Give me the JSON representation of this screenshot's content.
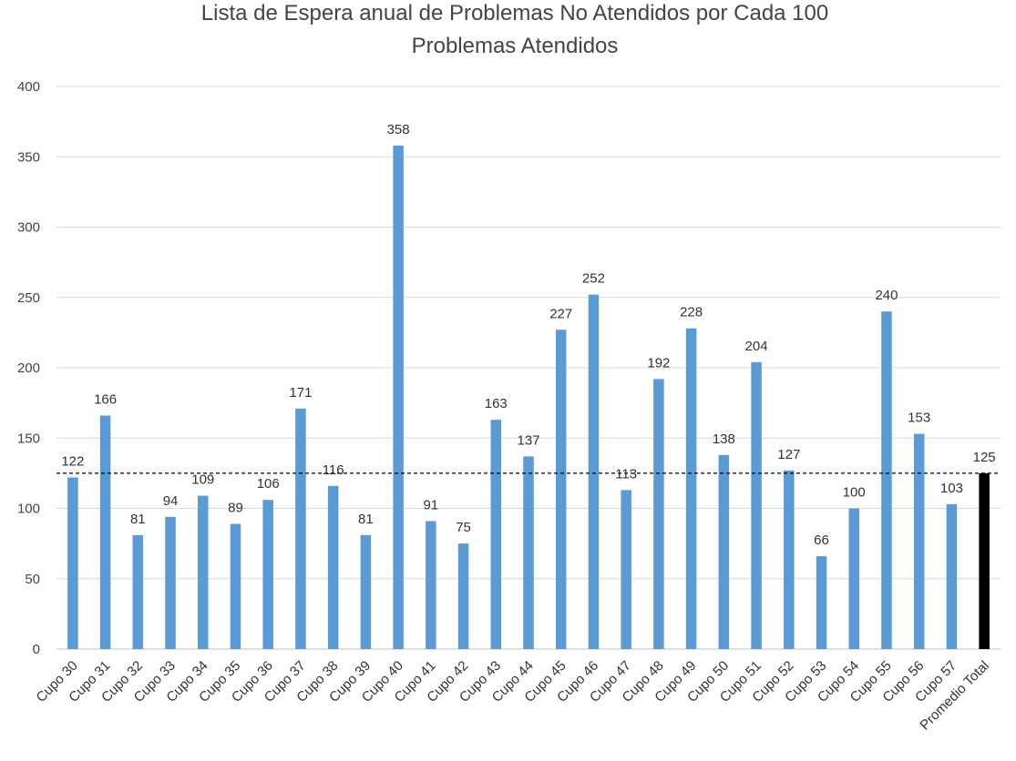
{
  "chart_data": {
    "type": "bar",
    "title": "Lista de Espera anual de Problemas No Atendidos por Cada 100 Problemas Atendidos",
    "title_lines": [
      "Lista de Espera anual de Problemas No Atendidos por Cada 100",
      "Problemas Atendidos"
    ],
    "xlabel": "",
    "ylabel": "",
    "ylim": [
      0,
      400
    ],
    "yticks": [
      0,
      50,
      100,
      150,
      200,
      250,
      300,
      350,
      400
    ],
    "grid": true,
    "legend": "none",
    "categories": [
      "Cupo 30",
      "Cupo 31",
      "Cupo 32",
      "Cupo 33",
      "Cupo 34",
      "Cupo 35",
      "Cupo 36",
      "Cupo 37",
      "Cupo 38",
      "Cupo 39",
      "Cupo 40",
      "Cupo 41",
      "Cupo 42",
      "Cupo 43",
      "Cupo 44",
      "Cupo 45",
      "Cupo 46",
      "Cupo 47",
      "Cupo 48",
      "Cupo 49",
      "Cupo 50",
      "Cupo 51",
      "Cupo 52",
      "Cupo 53",
      "Cupo 54",
      "Cupo 55",
      "Cupo 56",
      "Cupo 57",
      "Promedio Total"
    ],
    "values": [
      122,
      166,
      81,
      94,
      109,
      89,
      106,
      171,
      116,
      81,
      358,
      91,
      75,
      163,
      137,
      227,
      252,
      113,
      192,
      228,
      138,
      204,
      127,
      66,
      100,
      240,
      153,
      103,
      125
    ],
    "average_line": 125,
    "highlight_category": "Promedio Total",
    "colors": {
      "bar": "#5B9BD5",
      "highlight": "#000000",
      "grid": "#D9D9D9",
      "average_line": "#000000"
    }
  }
}
